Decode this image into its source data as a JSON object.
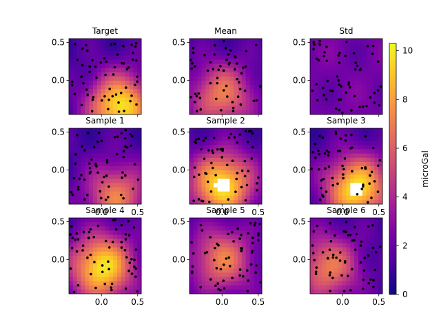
{
  "chart_data": {
    "type": "heatmap",
    "description_kind": "tricontour grid of gravity maps",
    "panels": [
      {
        "id": "target",
        "title": "Target",
        "peak": [
          0.25,
          -0.35
        ],
        "level": "high",
        "xticks": [
          "",
          "",
          ""
        ],
        "yticks": [
          "0.5",
          "0.0",
          ""
        ]
      },
      {
        "id": "mean",
        "title": "Mean",
        "peak": [
          0.0,
          -0.2
        ],
        "level": "medium",
        "xticks": [
          "",
          "",
          ""
        ],
        "yticks": [
          "0.5",
          "0.0",
          ""
        ]
      },
      {
        "id": "std",
        "title": "Std",
        "peak": [
          0.0,
          0.0
        ],
        "level": "low",
        "xticks": [
          "",
          "",
          ""
        ],
        "yticks": [
          "0.5",
          "0.0",
          ""
        ]
      },
      {
        "id": "sample1",
        "title": "Sample 1",
        "peak": [
          0.2,
          -0.35
        ],
        "level": "medium",
        "xticks": [
          "",
          "0.0",
          "0.5"
        ],
        "yticks": [
          "0.5",
          "0.0",
          ""
        ]
      },
      {
        "id": "sample2",
        "title": "Sample 2",
        "peak": [
          0.0,
          -0.2
        ],
        "level": "high",
        "xticks": [
          "",
          "0.0",
          "0.5"
        ],
        "yticks": [
          "0.5",
          "0.0",
          ""
        ]
      },
      {
        "id": "sample3",
        "title": "Sample 3",
        "peak": [
          0.2,
          -0.25
        ],
        "level": "high",
        "xticks": [
          "",
          "0.0",
          "0.5"
        ],
        "yticks": [
          "0.5",
          "0.0",
          ""
        ]
      },
      {
        "id": "sample4",
        "title": "Sample 4",
        "peak": [
          0.0,
          -0.1
        ],
        "level": "high",
        "xticks": [
          "",
          "0.0",
          "0.5"
        ],
        "yticks": [
          "0.5",
          "0.0",
          ""
        ]
      },
      {
        "id": "sample5",
        "title": "Sample 5",
        "peak": [
          0.0,
          0.0
        ],
        "level": "medium",
        "xticks": [
          "",
          "0.0",
          "0.5"
        ],
        "yticks": [
          "0.5",
          "0.0",
          ""
        ]
      },
      {
        "id": "sample6",
        "title": "Sample 6",
        "peak": [
          -0.2,
          -0.1
        ],
        "level": "medium",
        "xticks": [
          "",
          "0.0",
          "0.5"
        ],
        "yticks": [
          "0.5",
          "0.0",
          ""
        ]
      }
    ],
    "xlim": [
      -0.45,
      0.55
    ],
    "ylim": [
      -0.45,
      0.55
    ],
    "colorbar": {
      "label": "microGal",
      "range": [
        0,
        10.3
      ],
      "ticks": [
        0,
        2,
        4,
        6,
        8,
        10
      ],
      "colormap": "plasma"
    },
    "grid": false
  }
}
